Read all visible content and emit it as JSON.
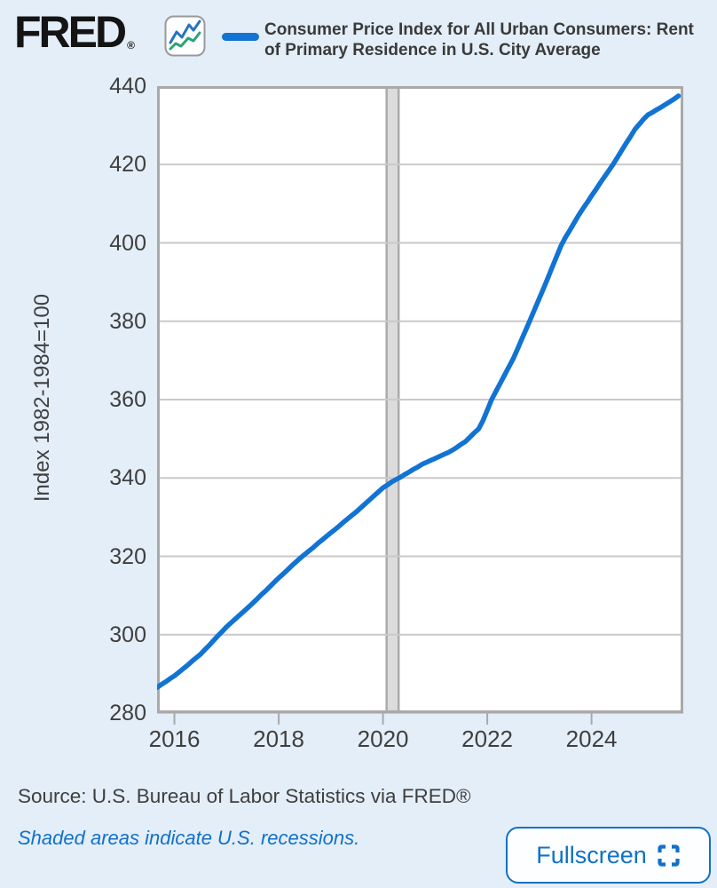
{
  "header": {
    "logo_text": "FRED",
    "logo_reg": "®",
    "logo_icon": "fred-sparkline-icon"
  },
  "colors": {
    "line_blue": "#1173d4",
    "icon_blue": "#2573c1",
    "icon_green": "#2aa474",
    "accent_text_blue": "#1171c8",
    "background": "#e4eef8",
    "plot_background": "#ffffff",
    "gridline": "#c9c9c9",
    "plot_border": "#a9a9a9",
    "recession_fill": "#dcdcdc",
    "recession_edge": "#ababab",
    "text_dark": "#3f3f3f"
  },
  "footer": {
    "source": "Source: U.S. Bureau of Labor Statistics via FRED®",
    "recession_note": "Shaded areas indicate U.S. recessions.",
    "fullscreen_label": "Fullscreen"
  },
  "chart_data": {
    "type": "line",
    "title": "Consumer Price Index for All Urban Consumers: Rent of Primary Residence in U.S. City Average",
    "xlabel": "",
    "ylabel": "Index 1982-1984=100",
    "ylim": [
      280,
      440
    ],
    "xlim_decimal": [
      2015.667,
      2025.76
    ],
    "y_ticks": [
      440,
      420,
      400,
      380,
      360,
      340,
      320,
      300,
      280
    ],
    "x_ticks": [
      2016,
      2018,
      2020,
      2022,
      2024
    ],
    "grid": "horizontal",
    "legend_position": "top",
    "recessions": [
      {
        "start_decimal": 2020.07,
        "end_decimal": 2020.3
      }
    ],
    "series": [
      {
        "name": "Consumer Price Index for All Urban Consumers: Rent of Primary Residence in U.S. City Average",
        "color": "#1173d4",
        "frequency": "monthly",
        "start": "2015-09",
        "end": "2025-09",
        "x_start_decimal": 2015.667,
        "x_step_decimal": 0.083333,
        "values": [
          286.5,
          287.3,
          288.0,
          288.8,
          289.5,
          290.4,
          291.3,
          292.2,
          293.2,
          294.1,
          295.0,
          296.2,
          297.3,
          298.5,
          299.7,
          300.8,
          302.0,
          303.0,
          304.0,
          305.0,
          306.0,
          307.0,
          308.0,
          309.1,
          310.2,
          311.2,
          312.3,
          313.4,
          314.5,
          315.5,
          316.5,
          317.6,
          318.6,
          319.6,
          320.5,
          321.4,
          322.3,
          323.3,
          324.2,
          325.1,
          326.0,
          326.9,
          327.8,
          328.8,
          329.7,
          330.6,
          331.5,
          332.5,
          333.5,
          334.5,
          335.5,
          336.5,
          337.5,
          338.2,
          339.0,
          339.6,
          340.2,
          340.9,
          341.5,
          342.2,
          342.8,
          343.5,
          344.0,
          344.5,
          345.0,
          345.5,
          346.0,
          346.5,
          347.1,
          347.8,
          348.6,
          349.3,
          350.4,
          351.5,
          352.5,
          354.6,
          357.3,
          360.0,
          362.1,
          364.2,
          366.3,
          368.4,
          370.5,
          373.0,
          375.6,
          378.1,
          380.7,
          383.3,
          385.9,
          388.5,
          391.2,
          393.9,
          396.6,
          399.3,
          401.4,
          403.2,
          405.1,
          407.0,
          408.7,
          410.3,
          412.0,
          413.6,
          415.3,
          416.9,
          418.5,
          420.1,
          421.9,
          423.7,
          425.5,
          427.2,
          429.0,
          430.3,
          431.6,
          432.7,
          433.3,
          434.0,
          434.6,
          435.3,
          436.0,
          436.7,
          437.5
        ]
      }
    ]
  }
}
